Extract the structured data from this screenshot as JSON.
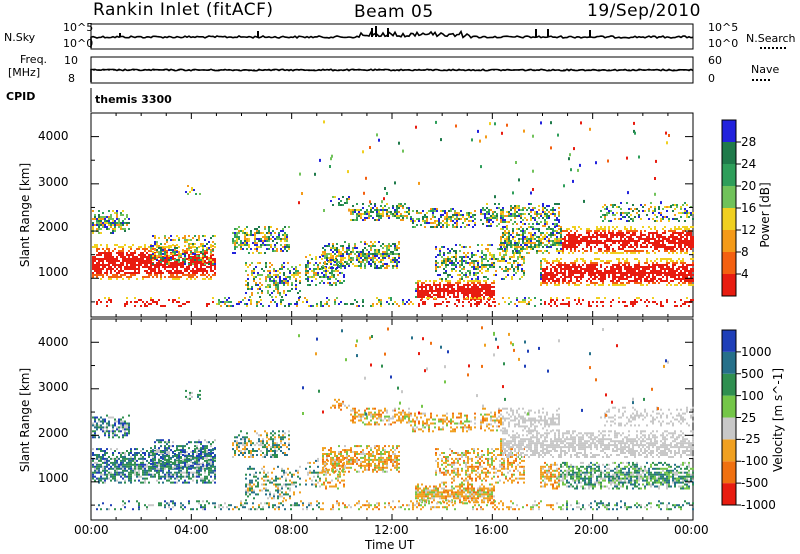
{
  "header": {
    "station": "Rankin Inlet (fitACF)",
    "beam": "Beam 05",
    "date": "19/Sep/2010"
  },
  "top_panels": {
    "nsky": {
      "label": "N.Sky",
      "ticks": [
        "10^5",
        "10^0"
      ]
    },
    "nsearch": {
      "label": "N.Search",
      "ticks": [
        "10^5",
        "10^0"
      ]
    },
    "freq": {
      "label_line1": "Freq.",
      "label_line2": "[MHz]",
      "ticks": [
        "10",
        "8"
      ]
    },
    "nave": {
      "label": "Nave",
      "ticks": [
        "60",
        "0"
      ]
    },
    "cpid": {
      "label": "CPID",
      "value": "themis 3300"
    }
  },
  "chart_data": [
    {
      "type": "heatmap",
      "name": "Power",
      "ylabel": "Slant Range [km]",
      "y_ticks": [
        "4000",
        "3000",
        "2000",
        "1000"
      ],
      "ylim": [
        180,
        4500
      ],
      "colorbar_label": "Power [dB]",
      "colorbar_ticks": [
        "28",
        "24",
        "20",
        "16",
        "12",
        "8",
        "4"
      ],
      "colorscale": [
        "#2222dd",
        "#1f7a4a",
        "#2e9e5a",
        "#70c25a",
        "#f0d020",
        "#f49a18",
        "#f46010",
        "#e81c10"
      ]
    },
    {
      "type": "heatmap",
      "name": "Velocity",
      "ylabel": "Slant Range [km]",
      "y_ticks": [
        "4000",
        "3000",
        "2000",
        "1000"
      ],
      "ylim": [
        180,
        4500
      ],
      "colorbar_label": "Velocity [m s^-1]",
      "colorbar_ticks": [
        "1000",
        "500",
        "100",
        "25",
        "-25",
        "-100",
        "-500",
        "-1000"
      ],
      "colorscale": [
        "#1f3fb8",
        "#26708a",
        "#2f8f50",
        "#74c648",
        "#c8c8c8",
        "#f0a020",
        "#f07010",
        "#e81c10"
      ]
    }
  ],
  "x_axis": {
    "label": "Time UT",
    "ticks": [
      "00:00",
      "04:00",
      "08:00",
      "12:00",
      "16:00",
      "20:00",
      "00:00"
    ]
  }
}
